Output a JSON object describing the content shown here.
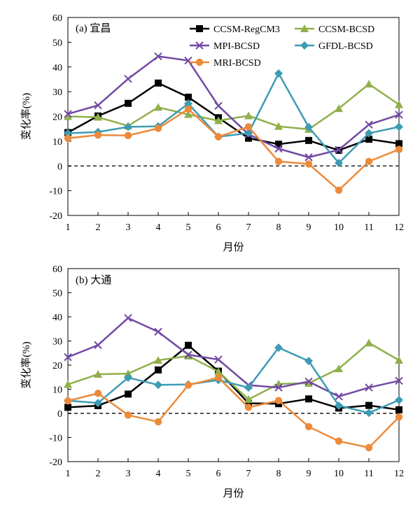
{
  "chart_data": [
    {
      "type": "line",
      "panel_label": "(a) 宜昌",
      "xlabel": "月份",
      "ylabel": "变化率(%)",
      "x": [
        1,
        2,
        3,
        4,
        5,
        6,
        7,
        8,
        9,
        10,
        11,
        12
      ],
      "xticks": [
        "1",
        "2",
        "3",
        "4",
        "5",
        "6",
        "7",
        "8",
        "9",
        "10",
        "11",
        "12"
      ],
      "ylim": [
        -20,
        60
      ],
      "yticks": [
        "-20",
        "-10",
        "0",
        "10",
        "20",
        "30",
        "40",
        "50",
        "60"
      ],
      "zero_line": "dashed",
      "grid": false,
      "legend_placement": "top-right",
      "series": [
        {
          "name": "CCSM-RegCM3",
          "color": "#000000",
          "marker": "square",
          "values": [
            13.5,
            20.2,
            25.3,
            33.5,
            27.8,
            19.5,
            11.2,
            8.8,
            10.3,
            6.3,
            10.8,
            9.0
          ]
        },
        {
          "name": "CCSM-BCSD",
          "color": "#8fb04a",
          "marker": "triangle",
          "values": [
            20.0,
            19.7,
            16.2,
            23.7,
            20.8,
            18.3,
            20.3,
            16.0,
            14.8,
            23.2,
            33.1,
            24.8
          ]
        },
        {
          "name": "MPI-BCSD",
          "color": "#7249a4",
          "marker": "x",
          "values": [
            21.0,
            24.5,
            35.2,
            44.3,
            42.6,
            24.3,
            12.8,
            7.0,
            3.5,
            6.5,
            16.7,
            20.7
          ]
        },
        {
          "name": "GFDL-BCSD",
          "color": "#3d9bb4",
          "marker": "diamond",
          "values": [
            13.2,
            13.7,
            15.8,
            16.0,
            25.2,
            11.8,
            13.3,
            37.4,
            15.7,
            1.2,
            13.2,
            15.8
          ]
        },
        {
          "name": "MRI-BCSD",
          "color": "#ec8a3a",
          "marker": "circle",
          "values": [
            11.2,
            12.5,
            12.3,
            15.2,
            23.0,
            11.8,
            15.8,
            1.8,
            0.8,
            -9.8,
            1.8,
            6.7
          ]
        }
      ]
    },
    {
      "type": "line",
      "panel_label": "(b) 大通",
      "xlabel": "月份",
      "ylabel": "变化率(%)",
      "x": [
        1,
        2,
        3,
        4,
        5,
        6,
        7,
        8,
        9,
        10,
        11,
        12
      ],
      "xticks": [
        "1",
        "2",
        "3",
        "4",
        "5",
        "6",
        "7",
        "8",
        "9",
        "10",
        "11",
        "12"
      ],
      "ylim": [
        -20,
        60
      ],
      "yticks": [
        "-20",
        "-10",
        "0",
        "10",
        "20",
        "30",
        "40",
        "50",
        "60"
      ],
      "zero_line": "dashed",
      "grid": false,
      "series": [
        {
          "name": "CCSM-RegCM3",
          "color": "#000000",
          "marker": "square",
          "values": [
            2.5,
            3.2,
            8.0,
            18.0,
            28.2,
            17.5,
            4.2,
            4.0,
            6.0,
            2.2,
            3.3,
            1.5
          ]
        },
        {
          "name": "CCSM-BCSD",
          "color": "#8fb04a",
          "marker": "triangle",
          "values": [
            12.0,
            16.2,
            16.5,
            22.0,
            23.8,
            17.3,
            5.8,
            12.2,
            12.5,
            18.5,
            29.2,
            22.0
          ]
        },
        {
          "name": "MPI-BCSD",
          "color": "#7249a4",
          "marker": "x",
          "values": [
            23.3,
            28.3,
            39.5,
            33.8,
            24.3,
            22.3,
            11.7,
            10.7,
            13.2,
            7.0,
            10.7,
            13.5
          ]
        },
        {
          "name": "GFDL-BCSD",
          "color": "#3d9bb4",
          "marker": "diamond",
          "values": [
            5.3,
            4.3,
            14.8,
            11.8,
            12.0,
            13.8,
            10.7,
            27.2,
            21.7,
            3.2,
            0.2,
            5.5
          ]
        },
        {
          "name": "MRI-BCSD",
          "color": "#ec8a3a",
          "marker": "circle",
          "values": [
            5.2,
            8.3,
            -0.7,
            -3.5,
            11.7,
            14.8,
            2.5,
            5.3,
            -5.5,
            -11.5,
            -14.2,
            -1.5
          ]
        }
      ]
    }
  ]
}
